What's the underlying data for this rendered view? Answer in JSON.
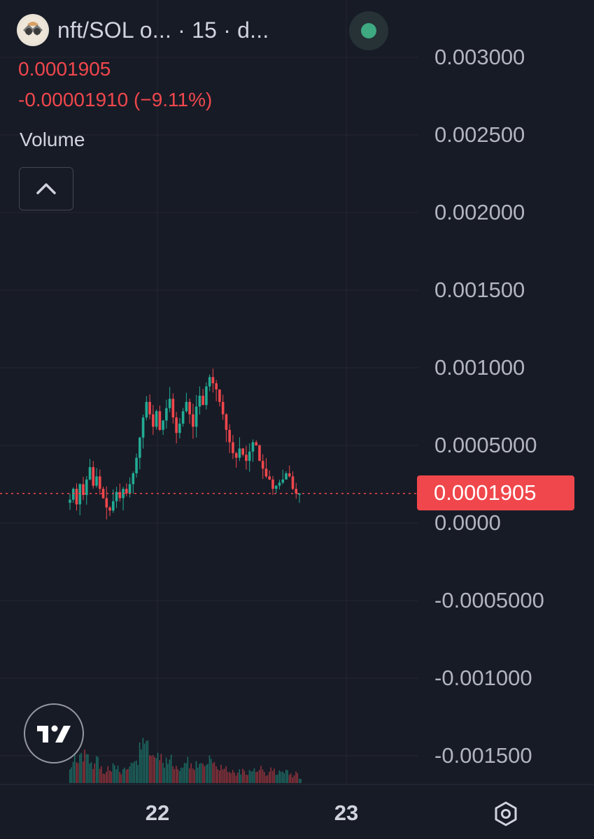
{
  "header": {
    "symbol_title": "nft/SOL o...  · 15 · d...",
    "logo_icon": "coin-logo-icon",
    "status_color": "#3fa982",
    "last_price": "0.0001905",
    "change": "-0.00001910 (−9.11%)"
  },
  "volume_pane": {
    "label": "Volume",
    "collapse_icon": "chevron-up-icon"
  },
  "price_axis": {
    "labels": [
      "0.003000",
      "0.002500",
      "0.002000",
      "0.001500",
      "0.001000",
      "0.0005000",
      "0.0000",
      "-0.0005000",
      "-0.001000",
      "-0.001500"
    ],
    "values": [
      0.003,
      0.0025,
      0.002,
      0.0015,
      0.001,
      0.0005,
      0,
      -0.0005,
      -0.001,
      -0.0015
    ],
    "current_price_label": "0.0001905",
    "current_price_value": 0.0001905
  },
  "time_axis": {
    "labels": [
      "22",
      "23"
    ]
  },
  "footer": {
    "settings_icon": "settings-icon",
    "brand_icon": "tradingview-logo-icon"
  },
  "colors": {
    "background": "#171b26",
    "grid": "#242733",
    "up": "#22ab94",
    "down": "#f0474c",
    "text": "#d1d4dc",
    "axis_text": "#b2b5be"
  },
  "chart_data": {
    "type": "candlestick",
    "interval": "15",
    "ylim": [
      -0.0016,
      0.0031
    ],
    "x_labels": [
      "22",
      "23"
    ],
    "candles_note": "",
    "close_path": [
      0.00015,
      0.00022,
      0.00012,
      0.00025,
      0.00018,
      0.00028,
      0.00036,
      0.00024,
      0.0003,
      0.00022,
      0.00016,
      0.0001,
      8e-05,
      0.00014,
      0.0002,
      0.00016,
      0.00022,
      0.00019,
      0.00025,
      0.00032,
      0.00042,
      0.00055,
      0.00068,
      0.00078,
      0.0007,
      0.00062,
      0.00072,
      0.0006,
      0.00066,
      0.00074,
      0.0008,
      0.00068,
      0.00058,
      0.00064,
      0.00072,
      0.00078,
      0.0007,
      0.00062,
      0.00075,
      0.00082,
      0.00076,
      0.00088,
      0.00094,
      0.0009,
      0.00086,
      0.00078,
      0.0007,
      0.0006,
      0.00052,
      0.00045,
      0.00042,
      0.00048,
      0.00044,
      0.0004,
      0.00046,
      0.00052,
      0.0005,
      0.0004,
      0.00035,
      0.0003,
      0.00028,
      0.00022,
      0.00024,
      0.00026,
      0.00028,
      0.00032,
      0.0003,
      0.00022,
      0.00019,
      0.0001905
    ],
    "volume_path": [
      0.3,
      0.5,
      0.4,
      0.7,
      0.6,
      0.8,
      0.5,
      0.4,
      0.6,
      0.3,
      0.2,
      0.3,
      0.25,
      0.35,
      0.3,
      0.2,
      0.3,
      0.25,
      0.35,
      0.4,
      0.5,
      0.7,
      0.9,
      0.8,
      0.6,
      0.5,
      0.7,
      0.5,
      0.4,
      0.5,
      0.6,
      0.4,
      0.3,
      0.35,
      0.4,
      0.5,
      0.35,
      0.3,
      0.4,
      0.45,
      0.35,
      0.5,
      0.6,
      0.45,
      0.4,
      0.35,
      0.3,
      0.3,
      0.25,
      0.3,
      0.2,
      0.25,
      0.3,
      0.2,
      0.25,
      0.3,
      0.2,
      0.3,
      0.25,
      0.2,
      0.3,
      0.25,
      0.2,
      0.3,
      0.2,
      0.25,
      0.2,
      0.15,
      0.2,
      0.1
    ]
  }
}
